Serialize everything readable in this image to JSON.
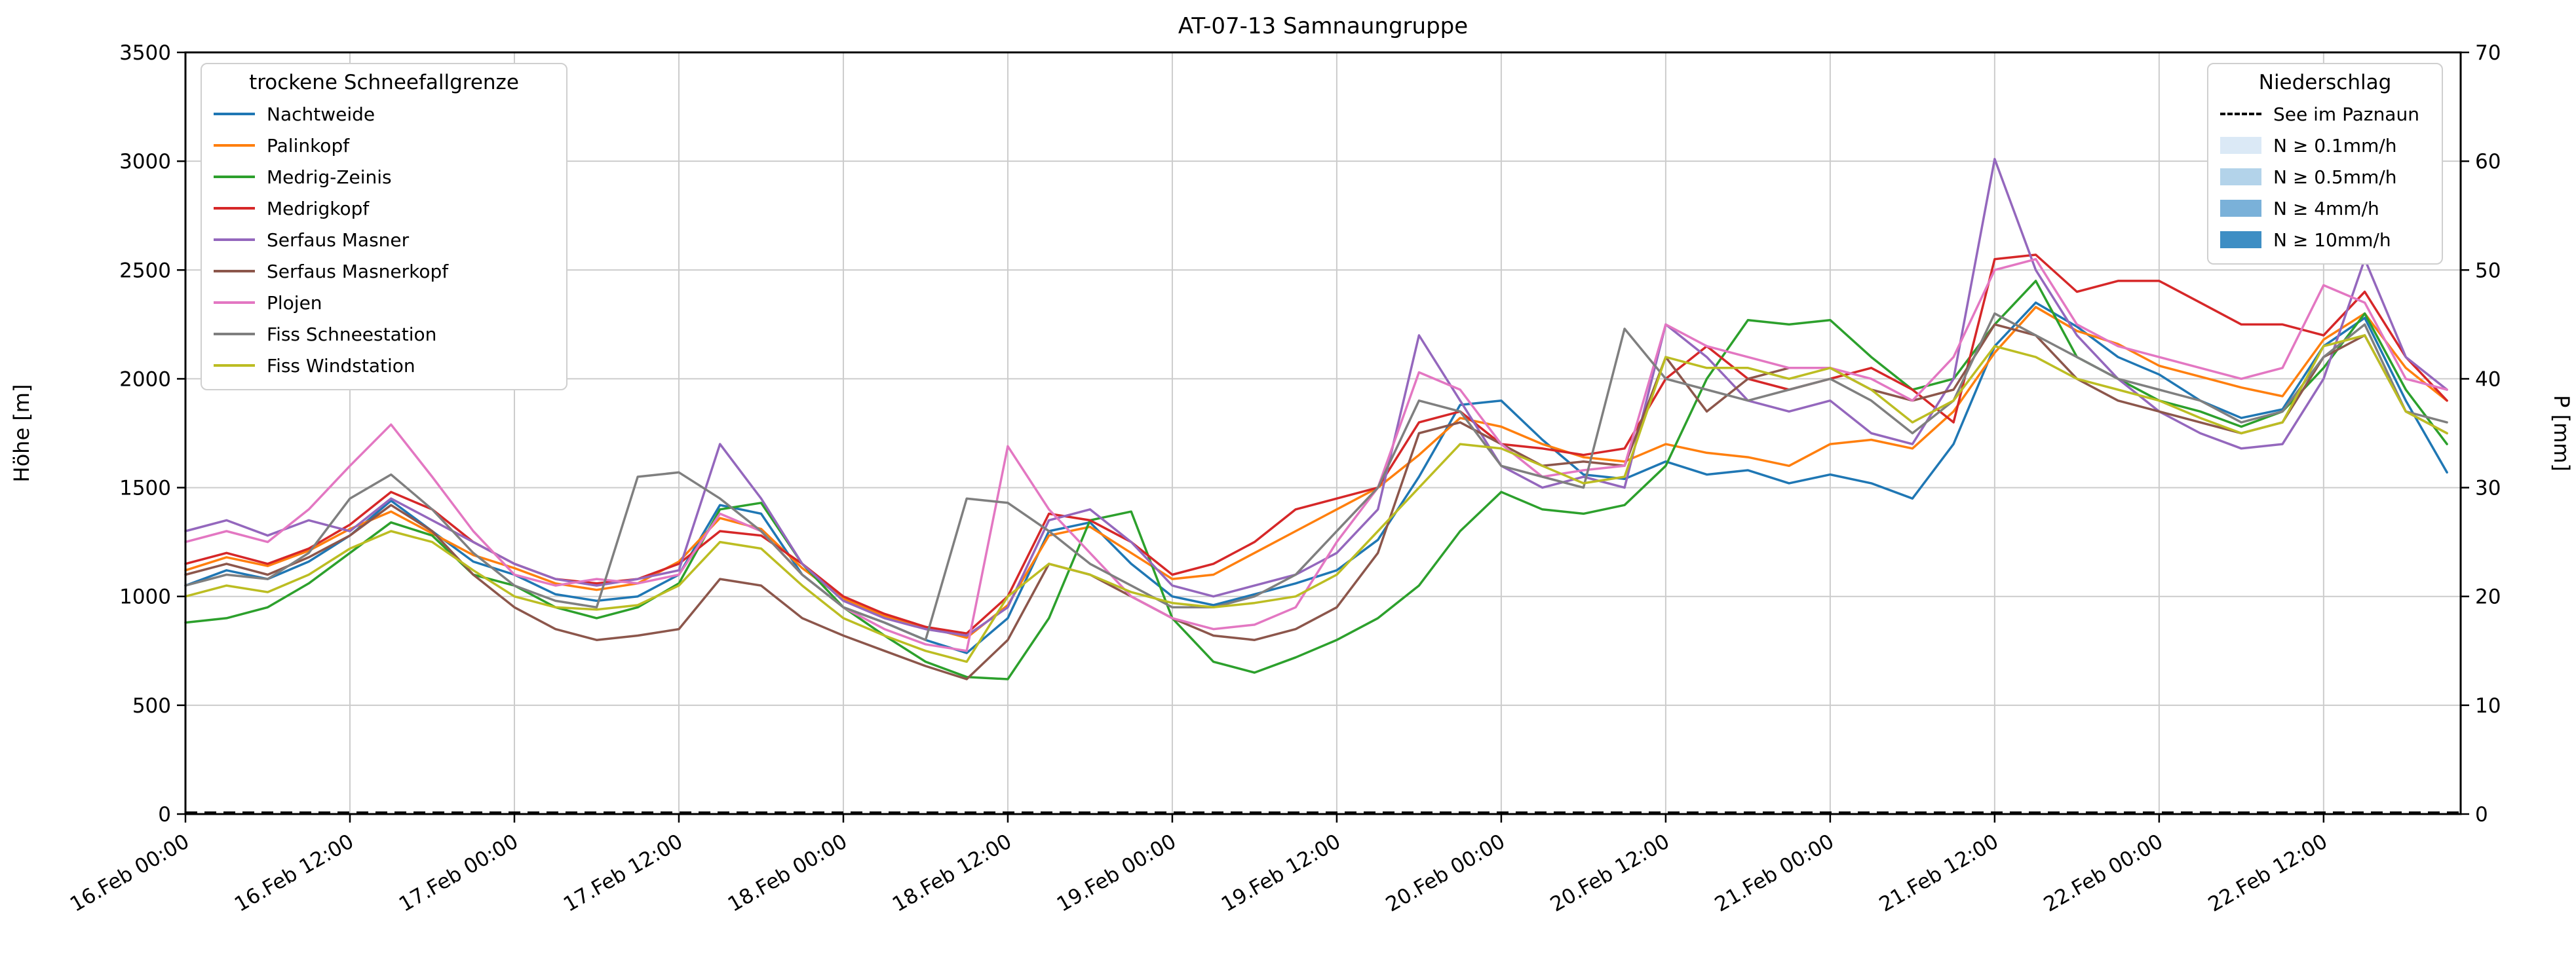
{
  "chart_data": {
    "type": "line",
    "title": "AT-07-13 Samnaungruppe",
    "ylabel_left": "Höhe [m]",
    "ylabel_right": "P [mm]",
    "ylim_left": [
      0,
      3500
    ],
    "ylim_right": [
      0,
      70
    ],
    "yticks_left": [
      0,
      500,
      1000,
      1500,
      2000,
      2500,
      3000,
      3500
    ],
    "yticks_right": [
      0,
      10,
      20,
      30,
      40,
      50,
      60,
      70
    ],
    "grid": true,
    "xlim_hours": [
      0,
      166
    ],
    "xticks": {
      "hours": [
        0,
        12,
        24,
        36,
        48,
        60,
        72,
        84,
        96,
        108,
        120,
        132,
        144,
        156
      ],
      "labels": [
        "16.Feb 00:00",
        "16.Feb 12:00",
        "17.Feb 00:00",
        "17.Feb 12:00",
        "18.Feb 00:00",
        "18.Feb 12:00",
        "19.Feb 00:00",
        "19.Feb 12:00",
        "20.Feb 00:00",
        "20.Feb 12:00",
        "21.Feb 00:00",
        "21.Feb 12:00",
        "22.Feb 00:00",
        "22.Feb 12:00"
      ]
    },
    "x_hours": [
      0,
      3,
      6,
      9,
      12,
      15,
      18,
      21,
      24,
      27,
      30,
      33,
      36,
      39,
      42,
      45,
      48,
      51,
      54,
      57,
      60,
      63,
      66,
      69,
      72,
      75,
      78,
      81,
      84,
      87,
      90,
      93,
      96,
      99,
      102,
      105,
      108,
      111,
      114,
      117,
      120,
      123,
      126,
      129,
      132,
      135,
      138,
      141,
      144,
      147,
      150,
      153,
      156,
      159,
      162,
      165
    ],
    "series": [
      {
        "name": "Nachtweide",
        "color": "#1f77b4",
        "values": [
          1050,
          1120,
          1080,
          1160,
          1280,
          1440,
          1300,
          1160,
          1100,
          1010,
          980,
          1000,
          1100,
          1420,
          1380,
          1100,
          950,
          880,
          800,
          740,
          900,
          1300,
          1340,
          1150,
          1000,
          960,
          1010,
          1060,
          1120,
          1260,
          1550,
          1880,
          1900,
          1720,
          1560,
          1540,
          1620,
          1560,
          1580,
          1520,
          1560,
          1520,
          1450,
          1700,
          2150,
          2350,
          2240,
          2100,
          2020,
          1900,
          1820,
          1860,
          2150,
          2280,
          1900,
          1570
        ]
      },
      {
        "name": "Palinkopf",
        "color": "#ff7f0e",
        "values": [
          1120,
          1180,
          1140,
          1210,
          1310,
          1390,
          1290,
          1190,
          1130,
          1060,
          1030,
          1060,
          1160,
          1360,
          1310,
          1130,
          990,
          910,
          860,
          810,
          960,
          1280,
          1320,
          1200,
          1080,
          1100,
          1200,
          1300,
          1400,
          1500,
          1650,
          1820,
          1780,
          1700,
          1640,
          1620,
          1700,
          1660,
          1640,
          1600,
          1700,
          1720,
          1680,
          1850,
          2120,
          2330,
          2220,
          2160,
          2060,
          2010,
          1960,
          1920,
          2180,
          2300,
          2050,
          1900
        ]
      },
      {
        "name": "Medrig-Zeinis",
        "color": "#2ca02c",
        "values": [
          880,
          900,
          950,
          1060,
          1200,
          1340,
          1280,
          1100,
          1050,
          950,
          900,
          950,
          1060,
          1400,
          1430,
          1150,
          950,
          820,
          700,
          630,
          620,
          900,
          1350,
          1390,
          900,
          700,
          650,
          720,
          800,
          900,
          1050,
          1300,
          1480,
          1400,
          1380,
          1420,
          1600,
          2000,
          2270,
          2250,
          2270,
          2100,
          1950,
          2000,
          2250,
          2450,
          2100,
          2000,
          1900,
          1850,
          1780,
          1850,
          2050,
          2300,
          1950,
          1700
        ]
      },
      {
        "name": "Medrigkopf",
        "color": "#d62728",
        "values": [
          1150,
          1200,
          1150,
          1220,
          1330,
          1480,
          1400,
          1250,
          1150,
          1080,
          1060,
          1080,
          1150,
          1300,
          1280,
          1150,
          1000,
          920,
          860,
          830,
          1000,
          1380,
          1350,
          1250,
          1100,
          1150,
          1250,
          1400,
          1450,
          1500,
          1800,
          1850,
          1700,
          1680,
          1650,
          1680,
          2000,
          2150,
          2000,
          1950,
          2000,
          2050,
          1950,
          1800,
          2550,
          2570,
          2400,
          2450,
          2450,
          2350,
          2250,
          2250,
          2200,
          2400,
          2100,
          1900
        ]
      },
      {
        "name": "Serfaus Masner",
        "color": "#9467bd",
        "values": [
          1300,
          1350,
          1280,
          1350,
          1300,
          1450,
          1350,
          1250,
          1150,
          1080,
          1050,
          1080,
          1120,
          1700,
          1450,
          1150,
          980,
          900,
          850,
          820,
          950,
          1350,
          1400,
          1250,
          1050,
          1000,
          1050,
          1100,
          1200,
          1400,
          2200,
          1900,
          1600,
          1500,
          1550,
          1500,
          2250,
          2100,
          1900,
          1850,
          1900,
          1750,
          1700,
          2000,
          3010,
          2500,
          2200,
          2000,
          1850,
          1750,
          1680,
          1700,
          2000,
          2550,
          2100,
          1950
        ]
      },
      {
        "name": "Serfaus Masnerkopf",
        "color": "#8c564b",
        "values": [
          1100,
          1150,
          1100,
          1180,
          1280,
          1420,
          1300,
          1100,
          950,
          850,
          800,
          820,
          850,
          1080,
          1050,
          900,
          820,
          750,
          680,
          620,
          800,
          1150,
          1100,
          1000,
          900,
          820,
          800,
          850,
          950,
          1200,
          1750,
          1800,
          1700,
          1600,
          1620,
          1600,
          2100,
          1850,
          2000,
          2050,
          2050,
          1950,
          1900,
          1950,
          2250,
          2200,
          2000,
          1900,
          1850,
          1800,
          1750,
          1800,
          2100,
          2200,
          1850,
          1750
        ]
      },
      {
        "name": "Plojen",
        "color": "#e377c2",
        "values": [
          1250,
          1300,
          1250,
          1400,
          1600,
          1790,
          1550,
          1300,
          1100,
          1050,
          1080,
          1060,
          1100,
          1380,
          1300,
          1100,
          950,
          850,
          780,
          750,
          1690,
          1400,
          1200,
          1000,
          900,
          850,
          870,
          950,
          1250,
          1500,
          2030,
          1950,
          1700,
          1550,
          1580,
          1600,
          2250,
          2150,
          2100,
          2050,
          2050,
          2000,
          1900,
          2100,
          2500,
          2550,
          2250,
          2150,
          2100,
          2050,
          2000,
          2050,
          2430,
          2350,
          2000,
          1950
        ]
      },
      {
        "name": "Fiss Schneestation",
        "color": "#7f7f7f",
        "values": [
          1050,
          1100,
          1080,
          1200,
          1450,
          1560,
          1400,
          1200,
          1050,
          980,
          950,
          1550,
          1570,
          1450,
          1300,
          1100,
          950,
          880,
          800,
          1450,
          1430,
          1300,
          1150,
          1050,
          950,
          950,
          1000,
          1100,
          1300,
          1500,
          1900,
          1850,
          1600,
          1550,
          1500,
          2230,
          2000,
          1950,
          1900,
          1950,
          2000,
          1900,
          1750,
          1900,
          2300,
          2200,
          2100,
          2000,
          1950,
          1900,
          1800,
          1850,
          2100,
          2250,
          1850,
          1800
        ]
      },
      {
        "name": "Fiss Windstation",
        "color": "#bcbd22",
        "values": [
          1000,
          1050,
          1020,
          1100,
          1220,
          1300,
          1250,
          1120,
          1000,
          950,
          940,
          960,
          1050,
          1250,
          1220,
          1050,
          900,
          820,
          750,
          700,
          1000,
          1150,
          1100,
          1020,
          970,
          950,
          970,
          1000,
          1100,
          1300,
          1500,
          1700,
          1680,
          1600,
          1520,
          1550,
          2100,
          2050,
          2050,
          2000,
          2050,
          1950,
          1800,
          1900,
          2150,
          2100,
          2000,
          1950,
          1900,
          1820,
          1750,
          1800,
          2150,
          2200,
          1850,
          1750
        ]
      }
    ],
    "precipitation_line": {
      "name": "See im Paznaun",
      "color": "#000000",
      "dashed": true,
      "constant_mm": 0
    },
    "legend_left": {
      "title": "trockene Schneefallgrenze"
    },
    "legend_right": {
      "title": "Niederschlag",
      "line_item": "See im Paznaun",
      "patches": [
        {
          "label": "N ≥ 0.1mm/h",
          "color": "#dbe9f6"
        },
        {
          "label": "N ≥ 0.5mm/h",
          "color": "#b3d3ea"
        },
        {
          "label": "N ≥ 4mm/h",
          "color": "#7ab1d9"
        },
        {
          "label": "N ≥ 10mm/h",
          "color": "#3e8ec4"
        }
      ]
    }
  }
}
